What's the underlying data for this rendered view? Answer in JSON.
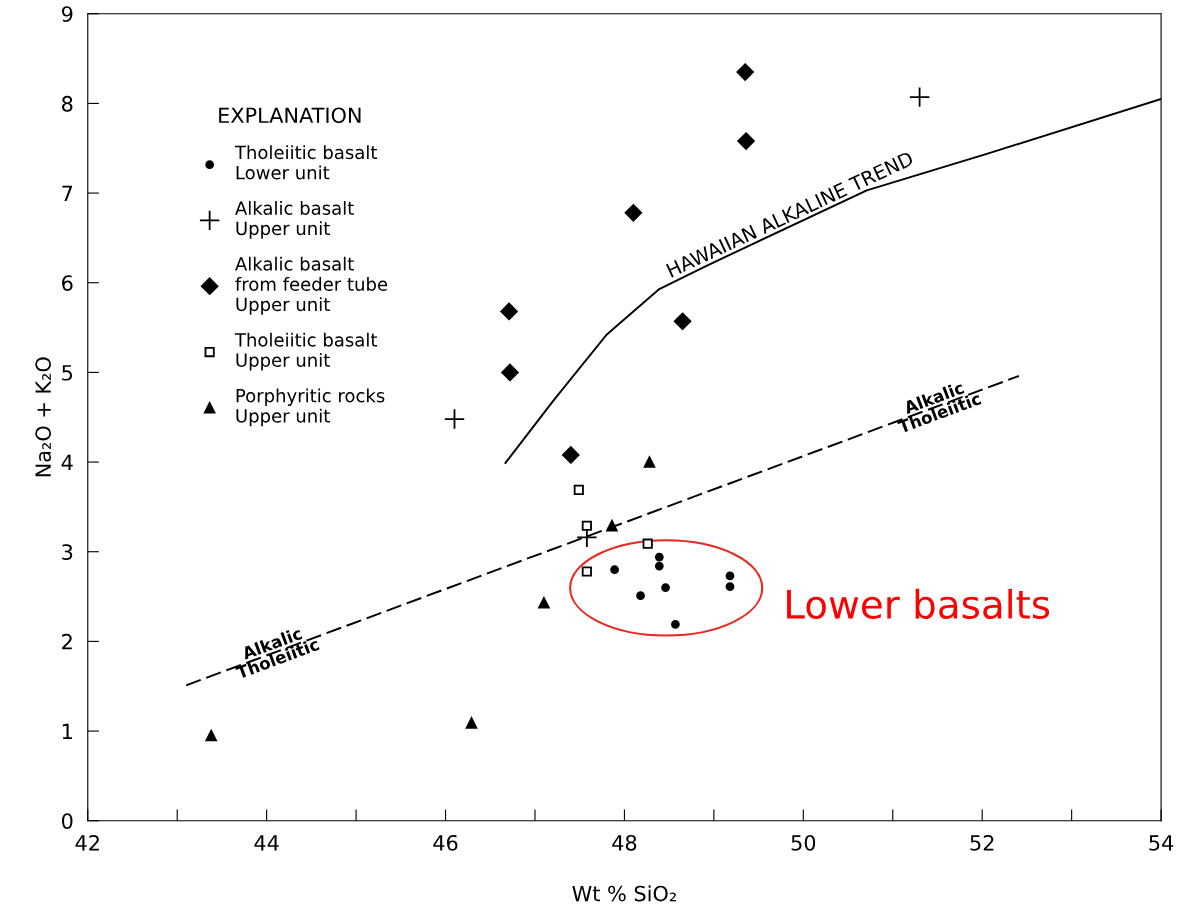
{
  "chart_data": {
    "type": "scatter",
    "xlabel": "Wt % SiO₂",
    "ylabel": "Na₂O + K₂O",
    "legend_title": "EXPLANATION",
    "legend": "top left",
    "grid": false,
    "xlim": [
      42,
      54
    ],
    "ylim": [
      0,
      9
    ],
    "xticks": [
      42,
      {
        "value": 43,
        "label": null
      },
      44,
      {
        "value": 45,
        "label": null
      },
      46,
      {
        "value": 47,
        "label": null
      },
      48,
      {
        "value": 49,
        "label": null
      },
      50,
      {
        "value": 51,
        "label": null
      },
      52,
      {
        "value": 53,
        "label": null
      },
      54
    ],
    "yticks": [
      0,
      1,
      2,
      3,
      4,
      5,
      6,
      7,
      8,
      9
    ],
    "series": [
      {
        "name": "Tholeiitic basalt\nLower unit",
        "color": "#000000",
        "marker": "circle",
        "x": [
          47.89,
          48.39,
          48.39,
          48.18,
          48.46,
          48.57,
          49.18,
          49.18
        ],
        "values": [
          2.8,
          2.94,
          2.84,
          2.51,
          2.6,
          2.19,
          2.73,
          2.61
        ]
      },
      {
        "name": "Alkalic basalt\nUpper unit",
        "color": "#000000",
        "marker": "cross",
        "x": [
          46.1,
          47.58,
          51.3
        ],
        "values": [
          4.48,
          3.16,
          8.07
        ]
      },
      {
        "name": "Alkalic basalt\nfrom feeder tube\nUpper unit",
        "color": "#000000",
        "marker": "diamond",
        "x": [
          49.35,
          49.36,
          48.1,
          46.71,
          46.72,
          48.65,
          47.4
        ],
        "values": [
          8.35,
          7.58,
          6.78,
          5.68,
          5.0,
          5.57,
          4.08
        ]
      },
      {
        "name": "Tholeiitic basalt\nUpper unit",
        "color": "#000000",
        "marker": "square",
        "x": [
          47.49,
          47.58,
          48.26,
          47.58
        ],
        "values": [
          3.69,
          3.29,
          3.09,
          2.78
        ]
      },
      {
        "name": "Porphyritic rocks\nUpper unit",
        "color": "#000000",
        "marker": "triangle",
        "x": [
          48.28,
          47.86,
          47.1,
          43.38,
          46.29
        ],
        "values": [
          4.0,
          3.29,
          2.43,
          0.95,
          1.09
        ]
      },
      {
        "type": "line",
        "color": "#000000",
        "line_style": "solid",
        "x": [
          46.67,
          47.21,
          47.8,
          48.39,
          48.9,
          49.45,
          50.71,
          52.06,
          54.0
        ],
        "values": [
          3.99,
          4.69,
          5.42,
          5.93,
          6.18,
          6.44,
          7.03,
          7.44,
          8.05
        ]
      },
      {
        "type": "line",
        "color": "#000000",
        "line_style": "dashed",
        "x": [
          43.1,
          52.41
        ],
        "values": [
          1.51,
          4.96
        ]
      }
    ],
    "annotations": [
      {
        "text": "HAWAIIAN ALKALINE TREND",
        "x": 49.9,
        "y": 6.65
      },
      {
        "text": "Alkalic",
        "x": 44.1,
        "y": 1.88
      },
      {
        "text": "Tholeiitic",
        "x": 44.1,
        "y": 1.88
      },
      {
        "text": "Alkalic",
        "x": 51.5,
        "y": 4.62
      },
      {
        "text": "Tholeiitic",
        "x": 51.5,
        "y": 4.62
      },
      "Lower basalts"
    ]
  }
}
